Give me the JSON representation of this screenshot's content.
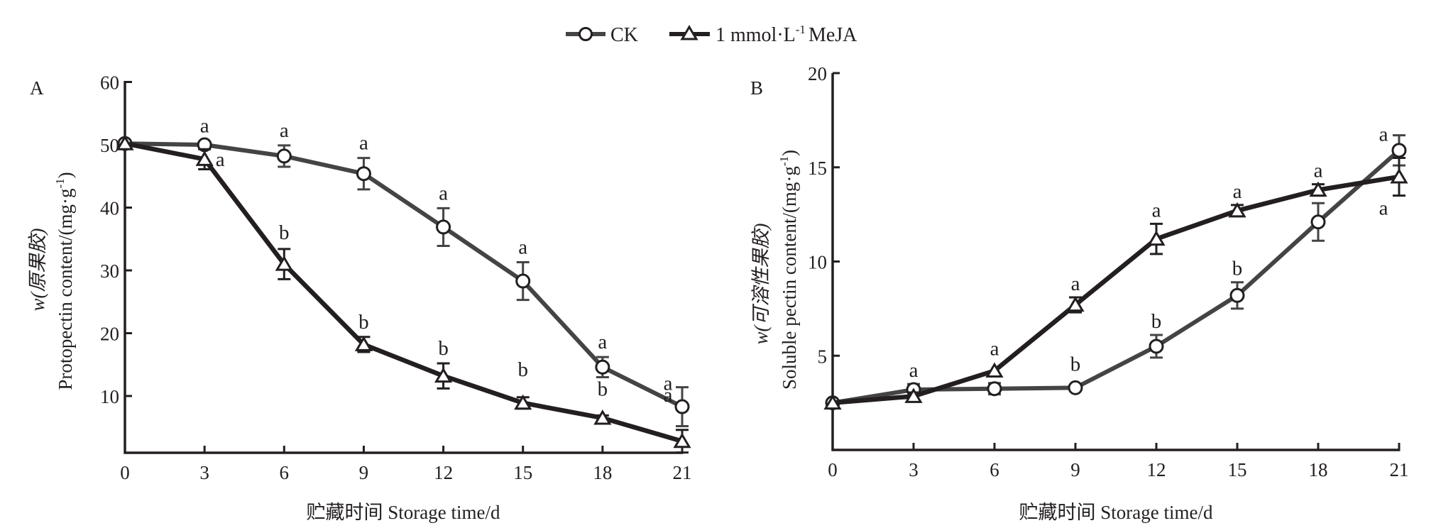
{
  "legend": {
    "items": [
      {
        "label": "CK",
        "marker": "circle-open",
        "color": "#444444"
      },
      {
        "label_main": "1 mmol·L",
        "label_sup": "-1",
        "label_tail": "MeJA",
        "label": "1 mmol·L-1 MeJA",
        "marker": "triangle-open",
        "color": "#231f20"
      }
    ]
  },
  "chart_data": [
    {
      "type": "line",
      "panel": "A",
      "title": "",
      "xlabel": "贮藏时间 Storage time/d",
      "ylabel_cn": "w(原果胶)",
      "ylabel_en": "Protopectin content/(mg·g",
      "ylabel_sup": "-1",
      "ylabel_tail": ")",
      "x": [
        0,
        3,
        6,
        9,
        12,
        15,
        18,
        21
      ],
      "xticks": [
        "0",
        "3",
        "6",
        "9",
        "12",
        "15",
        "18",
        "21"
      ],
      "yticks": [
        10,
        20,
        30,
        40,
        50,
        60
      ],
      "ylim": [
        1,
        60
      ],
      "xlim": [
        0,
        21
      ],
      "grid": false,
      "legend_position": "top-center",
      "series": [
        {
          "name": "CK",
          "color": "#444444",
          "marker": "circle-open",
          "values": [
            50.2,
            50.0,
            48.2,
            45.4,
            36.9,
            28.3,
            14.6,
            8.3
          ],
          "errors": [
            0.3,
            0.4,
            1.7,
            2.5,
            3.0,
            3.0,
            1.6,
            3.1
          ],
          "sig": [
            "",
            "a",
            "a",
            "a",
            "a",
            "a",
            "a",
            "a"
          ]
        },
        {
          "name": "1 mmol·L-1 MeJA",
          "color": "#231f20",
          "marker": "triangle-open",
          "values": [
            50.2,
            47.7,
            31.0,
            18.2,
            13.2,
            8.9,
            6.5,
            2.8
          ],
          "errors": [
            0.3,
            1.6,
            2.4,
            1.2,
            2.0,
            0.9,
            0.4,
            1.8
          ],
          "sig": [
            "",
            "a",
            "b",
            "b",
            "b",
            "b",
            "b",
            "a"
          ]
        }
      ]
    },
    {
      "type": "line",
      "panel": "B",
      "title": "",
      "xlabel": "贮藏时间 Storage time/d",
      "ylabel_cn": "w(可溶性果胶)",
      "ylabel_en": "Soluble pectin content/(mg·g",
      "ylabel_sup": "-1",
      "ylabel_tail": ")",
      "x": [
        0,
        3,
        6,
        9,
        12,
        15,
        18,
        21
      ],
      "xticks": [
        "0",
        "3",
        "6",
        "9",
        "12",
        "15",
        "18",
        "21"
      ],
      "yticks": [
        5,
        10,
        15,
        20
      ],
      "ylim": [
        0,
        20
      ],
      "xlim": [
        0,
        21
      ],
      "grid": false,
      "legend_position": "top-center",
      "series": [
        {
          "name": "CK",
          "color": "#444444",
          "marker": "circle-open",
          "values": [
            2.5,
            3.2,
            3.25,
            3.3,
            5.5,
            8.2,
            12.1,
            15.9
          ],
          "errors": [
            0.1,
            0.3,
            0.3,
            0.1,
            0.6,
            0.7,
            1.0,
            0.8
          ],
          "sig": [
            "",
            "a",
            "",
            "b",
            "b",
            "b",
            "a",
            "a"
          ]
        },
        {
          "name": "1 mmol·L-1 MeJA",
          "color": "#231f20",
          "marker": "triangle-open",
          "values": [
            2.5,
            2.85,
            4.2,
            7.7,
            11.2,
            12.7,
            13.8,
            14.5
          ],
          "errors": [
            0.1,
            0.2,
            0.1,
            0.4,
            0.8,
            0.3,
            0.3,
            1.0
          ],
          "sig": [
            "",
            "",
            "a",
            "a",
            "a",
            "a",
            "a",
            "a"
          ]
        }
      ]
    }
  ]
}
